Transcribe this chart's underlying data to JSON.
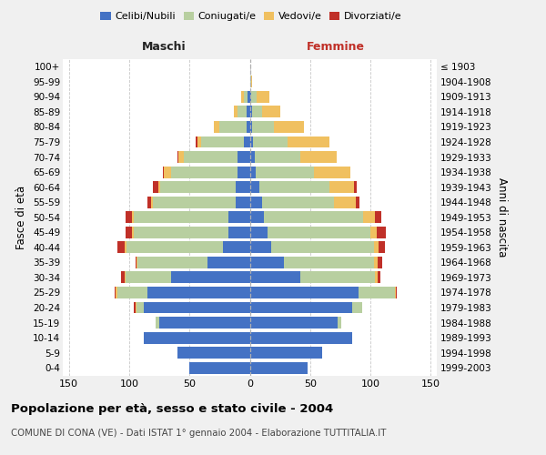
{
  "age_groups": [
    "0-4",
    "5-9",
    "10-14",
    "15-19",
    "20-24",
    "25-29",
    "30-34",
    "35-39",
    "40-44",
    "45-49",
    "50-54",
    "55-59",
    "60-64",
    "65-69",
    "70-74",
    "75-79",
    "80-84",
    "85-89",
    "90-94",
    "95-99",
    "100+"
  ],
  "birth_years": [
    "1999-2003",
    "1994-1998",
    "1989-1993",
    "1984-1988",
    "1979-1983",
    "1974-1978",
    "1969-1973",
    "1964-1968",
    "1959-1963",
    "1954-1958",
    "1949-1953",
    "1944-1948",
    "1939-1943",
    "1934-1938",
    "1929-1933",
    "1924-1928",
    "1919-1923",
    "1914-1918",
    "1909-1913",
    "1904-1908",
    "≤ 1903"
  ],
  "maschi_celibi": [
    50,
    60,
    88,
    75,
    88,
    85,
    65,
    35,
    22,
    18,
    18,
    12,
    12,
    10,
    10,
    5,
    3,
    3,
    2,
    0,
    0
  ],
  "maschi_coniugati": [
    0,
    0,
    0,
    3,
    6,
    25,
    38,
    58,
    80,
    78,
    78,
    68,
    62,
    55,
    45,
    35,
    22,
    7,
    3,
    0,
    0
  ],
  "maschi_vedovi": [
    0,
    0,
    0,
    0,
    1,
    1,
    1,
    1,
    2,
    2,
    2,
    2,
    2,
    6,
    4,
    3,
    5,
    3,
    2,
    0,
    0
  ],
  "maschi_divorziati": [
    0,
    0,
    0,
    0,
    1,
    1,
    3,
    1,
    6,
    5,
    5,
    3,
    4,
    1,
    1,
    2,
    0,
    0,
    0,
    0,
    0
  ],
  "femmine_nubili": [
    48,
    60,
    85,
    73,
    85,
    90,
    42,
    28,
    18,
    15,
    12,
    10,
    8,
    5,
    4,
    3,
    2,
    2,
    1,
    0,
    0
  ],
  "femmine_coniugate": [
    0,
    0,
    0,
    3,
    8,
    30,
    62,
    75,
    85,
    85,
    82,
    60,
    58,
    48,
    38,
    28,
    18,
    8,
    5,
    1,
    0
  ],
  "femmine_vedove": [
    0,
    0,
    0,
    0,
    0,
    1,
    2,
    3,
    4,
    5,
    10,
    18,
    20,
    30,
    30,
    35,
    25,
    15,
    10,
    1,
    0
  ],
  "femmine_divorziate": [
    0,
    0,
    0,
    0,
    0,
    1,
    2,
    4,
    5,
    8,
    5,
    3,
    3,
    0,
    0,
    0,
    0,
    0,
    0,
    0,
    0
  ],
  "color_celibi": "#4472c4",
  "color_coniugati": "#b8cfa0",
  "color_vedovi": "#f0c060",
  "color_divorziati": "#c03028",
  "xlim": 155,
  "title": "Popolazione per età, sesso e stato civile - 2004",
  "subtitle": "COMUNE DI CONA (VE) - Dati ISTAT 1° gennaio 2004 - Elaborazione TUTTITALIA.IT",
  "ylabel_left": "Fasce di età",
  "ylabel_right": "Anni di nascita",
  "label_maschi": "Maschi",
  "label_femmine": "Femmine",
  "legend_labels": [
    "Celibi/Nubili",
    "Coniugati/e",
    "Vedovi/e",
    "Divorziati/e"
  ],
  "bg_color": "#f0f0f0",
  "plot_bg_color": "#ffffff"
}
